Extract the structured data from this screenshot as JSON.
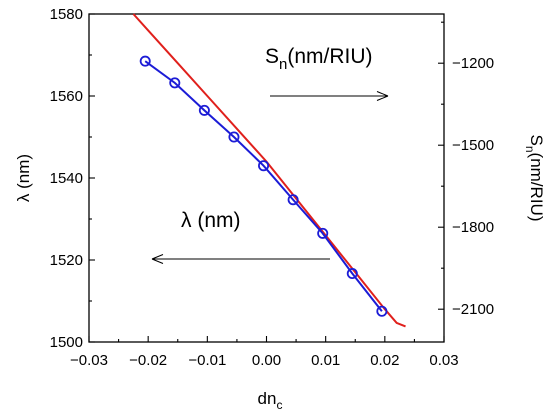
{
  "chart_data": {
    "type": "line",
    "xlabel": "dn",
    "xlabel_sub": "c",
    "ylabel": "λ (nm)",
    "y2label": "S",
    "y2label_sub": "n",
    "y2label_tail": "(nm/RIU)",
    "xlim": [
      -0.03,
      0.03
    ],
    "ylim": [
      1500,
      1580
    ],
    "y2lim": [
      -2220,
      -1020
    ],
    "x_ticks": [
      "−0.03",
      "−0.02",
      "−0.01",
      "0.00",
      "0.01",
      "0.02",
      "0.03"
    ],
    "x_tick_values": [
      -0.03,
      -0.02,
      -0.01,
      0.0,
      0.01,
      0.02,
      0.03
    ],
    "y_ticks": [
      "1500",
      "1520",
      "1540",
      "1560",
      "1580"
    ],
    "y_tick_values": [
      1500,
      1520,
      1540,
      1560,
      1580
    ],
    "y2_ticks": [
      "−1200",
      "−1500",
      "−1800",
      "−2100"
    ],
    "y2_tick_values": [
      -1200,
      -1500,
      -1800,
      -2100
    ],
    "grid": false,
    "series": [
      {
        "axis": "left",
        "color": "#1c1cd6",
        "marker": "circle",
        "x": [
          -0.0205,
          -0.0155,
          -0.0105,
          -0.0055,
          -0.0005,
          0.0045,
          0.0095,
          0.0145,
          0.0195
        ],
        "y": [
          1568.5,
          1563.2,
          1556.5,
          1550.0,
          1543.0,
          1534.7,
          1526.5,
          1516.7,
          1507.5
        ]
      },
      {
        "axis": "right",
        "color": "#e0201c",
        "marker": "none",
        "x": [
          -0.0225,
          -0.02,
          -0.015,
          -0.01,
          -0.005,
          0.0,
          0.005,
          0.01,
          0.015,
          0.02,
          0.022,
          0.0235
        ],
        "y": [
          -1020,
          -1080,
          -1200,
          -1320,
          -1440,
          -1560,
          -1695,
          -1830,
          -1965,
          -2100,
          -2150,
          -2163
        ]
      }
    ],
    "annotations": [
      {
        "label": "S",
        "sub": "n",
        "tail": "(nm/RIU)",
        "arrow": "right"
      },
      {
        "label": "λ (nm)",
        "arrow": "left"
      }
    ]
  }
}
